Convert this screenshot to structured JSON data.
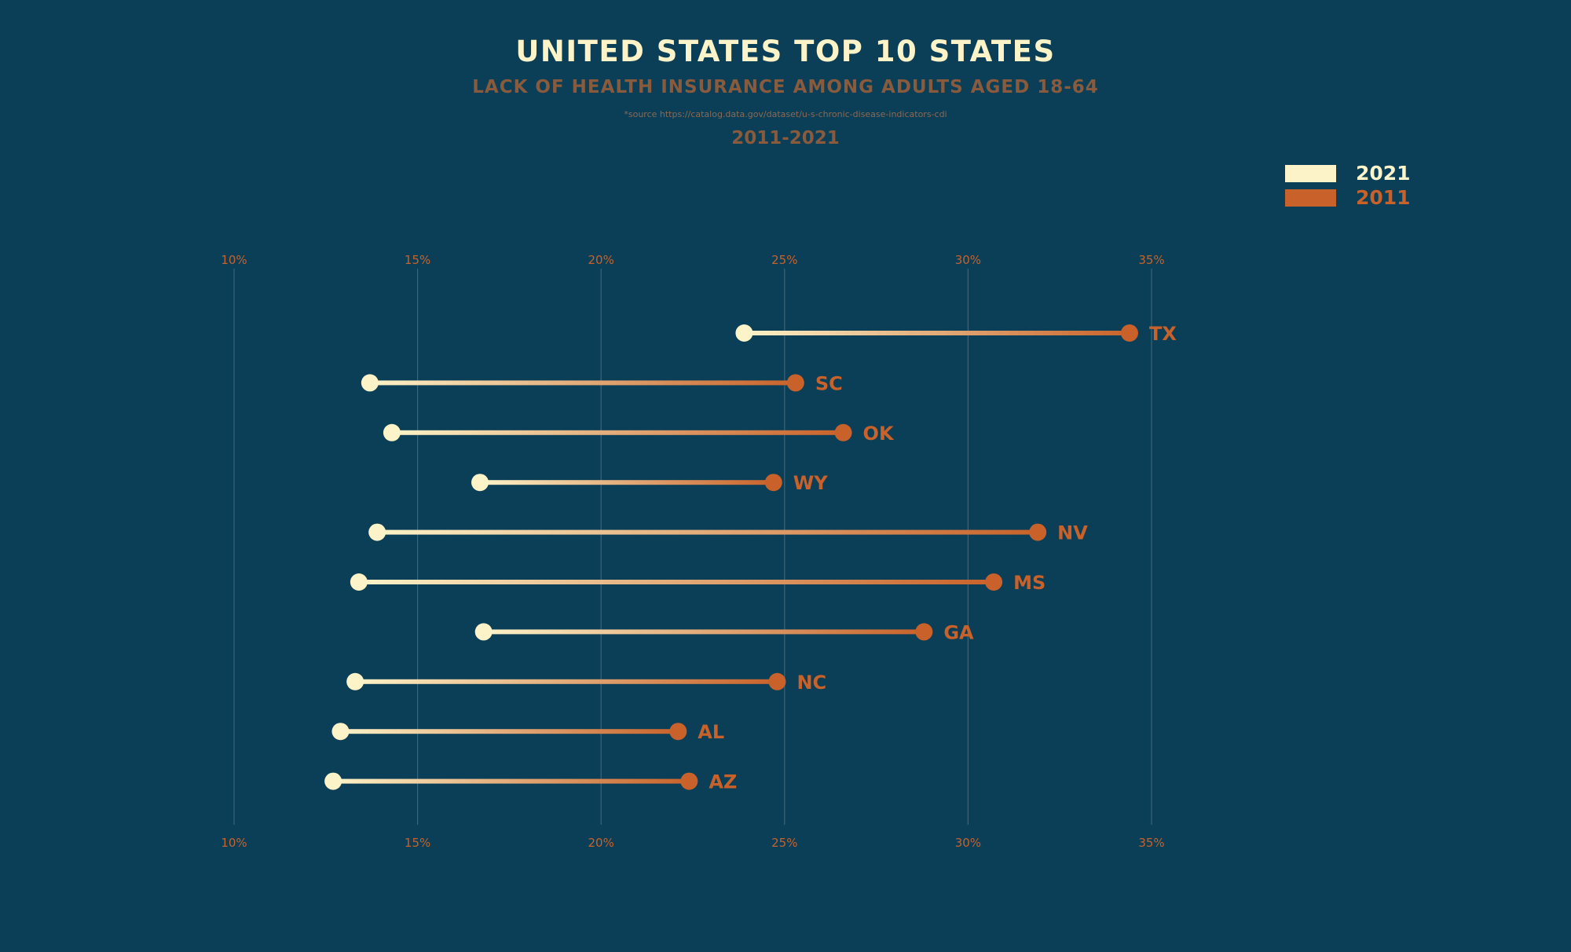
{
  "chart_data": {
    "type": "dumbbell",
    "title": "UNITED STATES TOP 10 STATES",
    "subtitle": "LACK OF HEALTH INSURANCE AMONG ADULTS AGED 18-64",
    "source": "*source https://catalog.data.gov/dataset/u-s-chronic-disease-indicators-cdi",
    "years_label": "2011-2021",
    "xlim": [
      10,
      35
    ],
    "x_ticks": [
      10,
      15,
      20,
      25,
      30,
      35
    ],
    "x_tick_labels": [
      "10%",
      "15%",
      "20%",
      "25%",
      "30%",
      "35%"
    ],
    "grid": true,
    "legend_position": "top-right",
    "series": [
      {
        "name": "2021",
        "color": "#fdf3c8"
      },
      {
        "name": "2011",
        "color": "#c8622a"
      }
    ],
    "categories": [
      "TX",
      "SC",
      "OK",
      "WY",
      "NV",
      "MS",
      "GA",
      "NC",
      "AL",
      "AZ"
    ],
    "values_2021": [
      23.9,
      13.7,
      14.3,
      16.7,
      13.9,
      13.4,
      16.8,
      13.3,
      12.9,
      12.7
    ],
    "values_2011": [
      34.4,
      25.3,
      26.6,
      24.7,
      31.9,
      30.7,
      28.8,
      24.8,
      22.1,
      22.4
    ]
  }
}
